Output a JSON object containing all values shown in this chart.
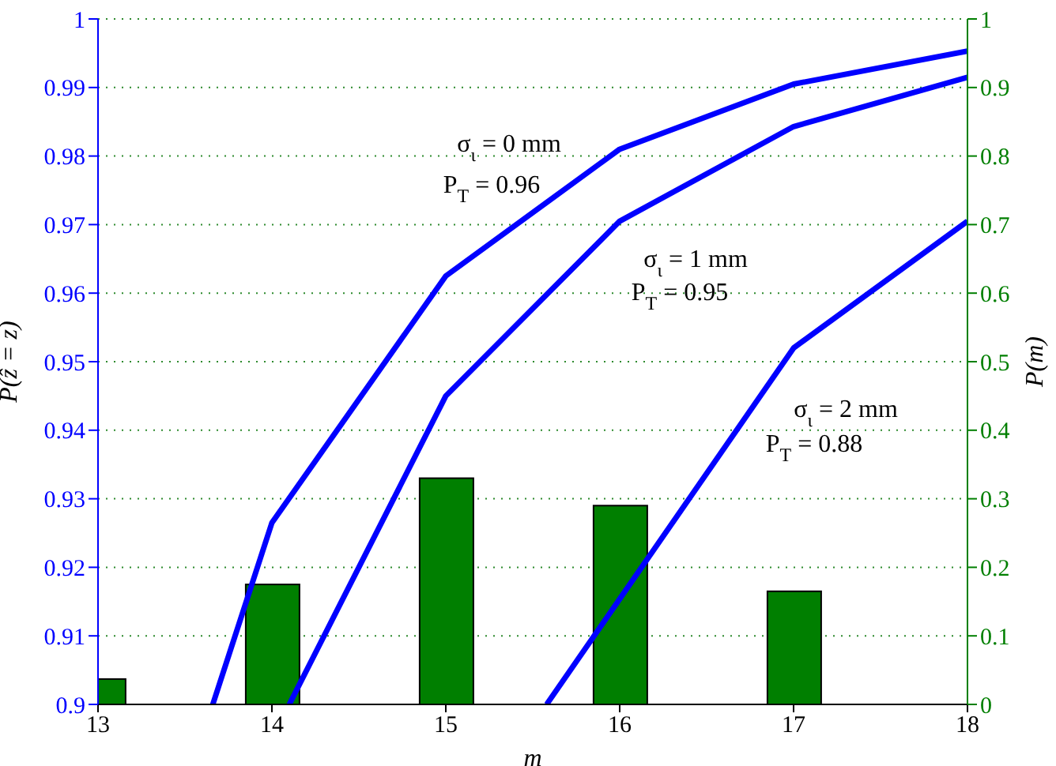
{
  "chart_data": {
    "type": "bar",
    "xlabel": "m",
    "ylabel": "P(ẑ = z)",
    "y2label": "P(m)",
    "xlim": [
      13,
      18
    ],
    "xticks": [
      13,
      14,
      15,
      16,
      17,
      18
    ],
    "ylim": [
      0.9,
      1
    ],
    "yticks": [
      0.9,
      0.91,
      0.92,
      0.93,
      0.94,
      0.95,
      0.96,
      0.97,
      0.98,
      0.99,
      1
    ],
    "y2lim": [
      0,
      1
    ],
    "y2ticks": [
      0,
      0.1,
      0.2,
      0.3,
      0.4,
      0.5,
      0.6,
      0.7,
      0.8,
      0.9,
      1
    ],
    "grid": "y",
    "marker": "none",
    "line_style": "solid",
    "series": [
      {
        "type": "line",
        "color": "#0000ff",
        "x": [
          13.66,
          14,
          15,
          16,
          17,
          18
        ],
        "values": [
          0.9,
          0.9265,
          0.9625,
          0.981,
          0.9905,
          0.9953
        ]
      },
      {
        "type": "line",
        "color": "#0000ff",
        "x": [
          14.1,
          15,
          16,
          17,
          18
        ],
        "values": [
          0.9,
          0.945,
          0.9705,
          0.9843,
          0.9915
        ]
      },
      {
        "type": "line",
        "color": "#0000ff",
        "x": [
          15.58,
          17,
          18
        ],
        "values": [
          0.9,
          0.952,
          0.9705
        ]
      },
      {
        "axis": "y2",
        "color": "#007f00",
        "x": [
          13,
          14,
          15,
          16,
          17
        ],
        "values": [
          0.037,
          0.175,
          0.33,
          0.29,
          0.165
        ]
      }
    ],
    "annotations": [
      "σ$_{ι}$ = 0 mm",
      "P$_{T}$ = 0.96",
      "σ$_{ι}$ = 1 mm",
      "P$_{T}$ = 0.95",
      "σ$_{ι}$ = 2 mm",
      "P$_{T}$ = 0.88"
    ]
  }
}
